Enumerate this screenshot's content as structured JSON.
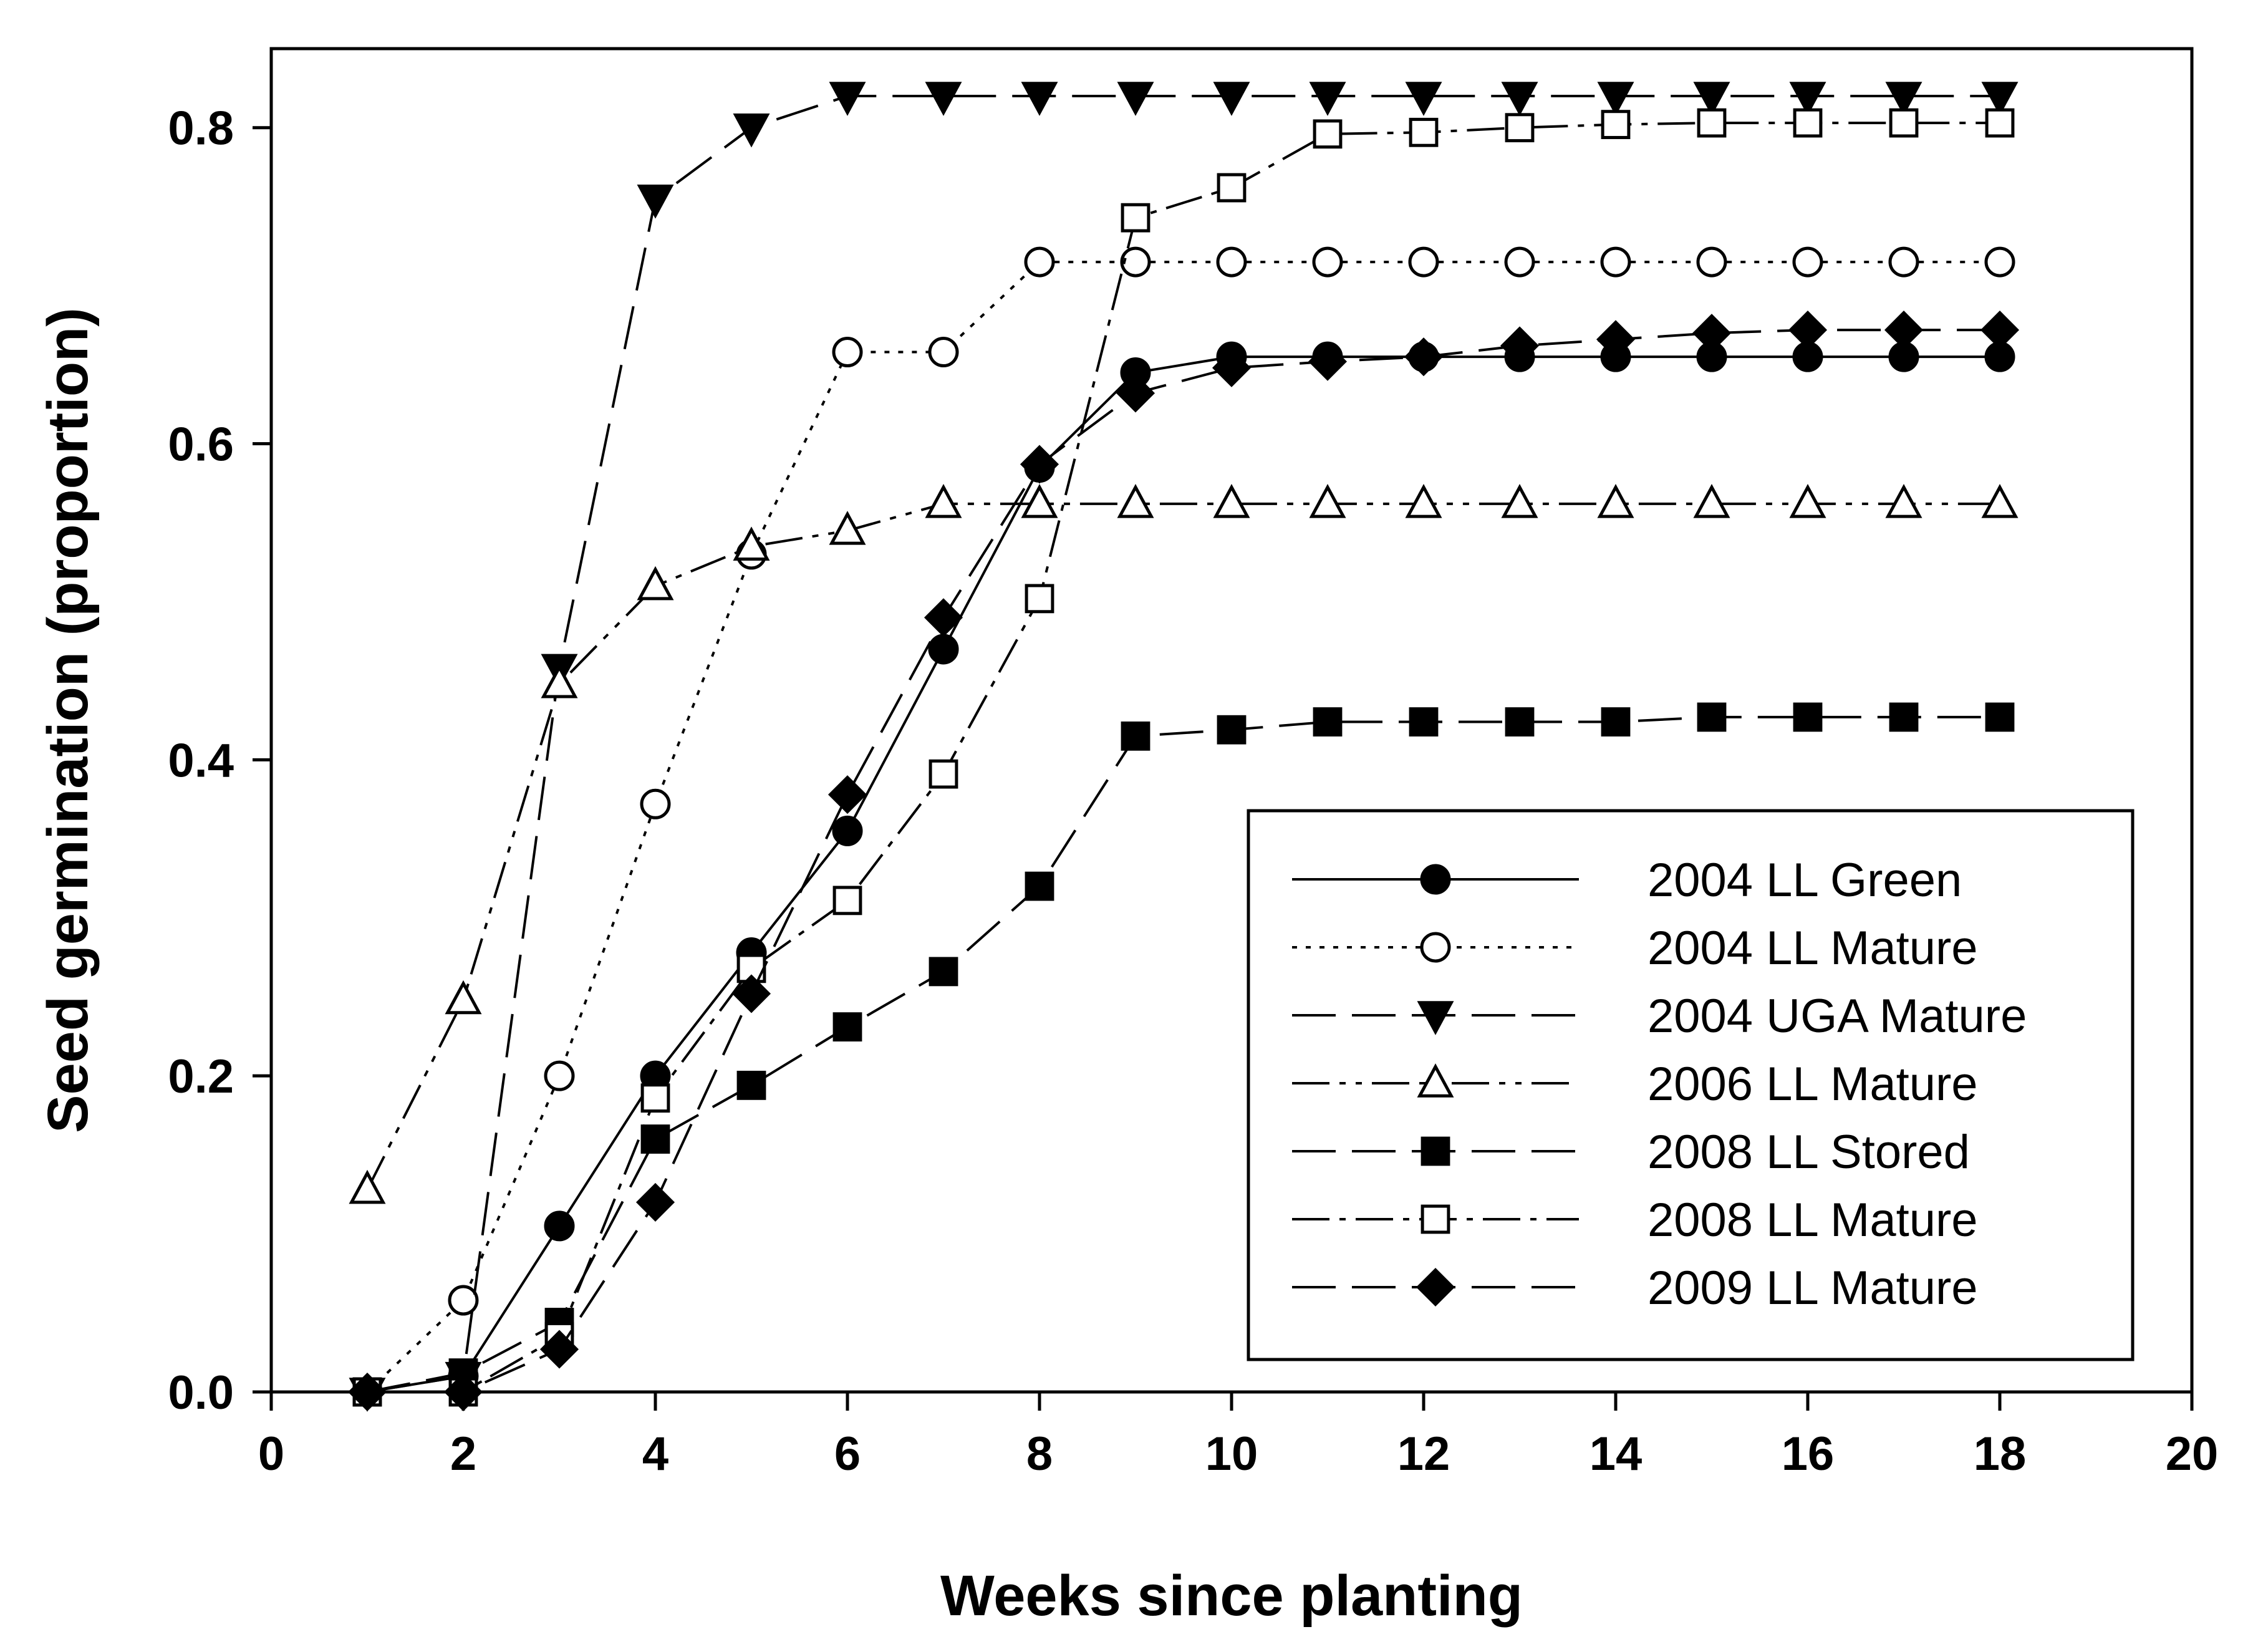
{
  "chart_data": {
    "type": "line",
    "title": "",
    "xlabel": "Weeks since planting",
    "ylabel": "Seed germination (proportion)",
    "xlim": [
      0,
      20
    ],
    "ylim": [
      0,
      0.85
    ],
    "xticks": [
      "0",
      "2",
      "4",
      "6",
      "8",
      "10",
      "12",
      "14",
      "16",
      "18",
      "20"
    ],
    "yticks": [
      "0.0",
      "0.2",
      "0.4",
      "0.6",
      "0.8"
    ],
    "grid": false,
    "legend_position": "lower-right",
    "x": [
      1,
      2,
      3,
      4,
      5,
      6,
      7,
      8,
      9,
      10,
      11,
      12,
      13,
      14,
      15,
      16,
      17,
      18
    ],
    "series": [
      {
        "name": "2004 LL Green",
        "marker": "filled-circle",
        "dash": "solid",
        "values": [
          0.0,
          0.01,
          0.105,
          0.2,
          0.278,
          0.355,
          0.47,
          0.585,
          0.645,
          0.655,
          0.655,
          0.655,
          0.655,
          0.655,
          0.655,
          0.655,
          0.655,
          0.655
        ]
      },
      {
        "name": "2004 LL Mature",
        "marker": "open-circle",
        "dash": "dotted",
        "values": [
          0.0,
          0.058,
          0.2,
          0.372,
          0.53,
          0.658,
          0.658,
          0.715,
          0.715,
          0.715,
          0.715,
          0.715,
          0.715,
          0.715,
          0.715,
          0.715,
          0.715,
          0.715
        ]
      },
      {
        "name": "2004 UGA Mature",
        "marker": "filled-triangle-down",
        "dash": "long-dash",
        "values": [
          0.0,
          0.01,
          0.458,
          0.755,
          0.8,
          0.82,
          0.82,
          0.82,
          0.82,
          0.82,
          0.82,
          0.82,
          0.82,
          0.82,
          0.82,
          0.82,
          0.82,
          0.82
        ]
      },
      {
        "name": "2006 LL Mature",
        "marker": "open-triangle-up",
        "dash": "dash-dot-dot",
        "values": [
          0.128,
          0.248,
          0.448,
          0.51,
          0.535,
          0.545,
          0.562,
          0.562,
          0.562,
          0.562,
          0.562,
          0.562,
          0.562,
          0.562,
          0.562,
          0.562,
          0.562,
          0.562
        ]
      },
      {
        "name": "2008 LL Stored",
        "marker": "filled-square",
        "dash": "long-dash",
        "values": [
          0.0,
          0.012,
          0.044,
          0.16,
          0.194,
          0.231,
          0.266,
          0.32,
          0.415,
          0.419,
          0.424,
          0.424,
          0.424,
          0.424,
          0.427,
          0.427,
          0.427,
          0.427
        ]
      },
      {
        "name": "2008 LL Mature",
        "marker": "open-square",
        "dash": "dash-dot",
        "values": [
          0.0,
          0.0,
          0.035,
          0.186,
          0.268,
          0.311,
          0.391,
          0.502,
          0.743,
          0.762,
          0.796,
          0.797,
          0.8,
          0.802,
          0.803,
          0.803,
          0.803,
          0.803
        ]
      },
      {
        "name": "2009 LL Mature",
        "marker": "filled-diamond",
        "dash": "long-dash",
        "values": [
          0.0,
          0.0,
          0.027,
          0.12,
          0.252,
          0.378,
          0.49,
          0.587,
          0.632,
          0.648,
          0.652,
          0.655,
          0.662,
          0.666,
          0.67,
          0.672,
          0.672,
          0.672
        ]
      }
    ]
  }
}
